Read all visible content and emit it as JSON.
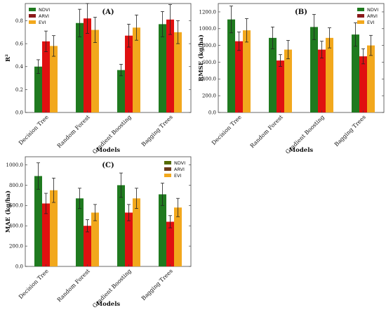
{
  "figure": {
    "colors": {
      "NDVI": "#1f7a1f",
      "ARVI": "#e01010",
      "EVI": "#f2a81d",
      "error_bar": "#222222",
      "frame": "#444444"
    },
    "legend_swatch_colors": {
      "NDVI": "#1f7a1f",
      "ARVI": "#8b1a1a",
      "EVI": "#f2a81d"
    },
    "legend_swatch_colors_C": {
      "NDVI": "#556b00",
      "ARVI": "#6b3a1a",
      "EVI": "#f2a81d"
    }
  },
  "chart_data": [
    {
      "id": "A",
      "type": "bar",
      "panel_label": "(A)",
      "categories": [
        "Decision Tree",
        "Random Forest",
        "Gradient Boosting",
        "Bagging Trees"
      ],
      "xlabel": "Models",
      "ylabel": "R²",
      "ylim": [
        0,
        0.95
      ],
      "yticks": [
        "0.0",
        "0.2",
        "0.4",
        "0.6",
        "0.8"
      ],
      "ytick_values": [
        0.0,
        0.2,
        0.4,
        0.6,
        0.8
      ],
      "legend_position": "top-left",
      "grid": false,
      "series": [
        {
          "name": "NDVI",
          "values": [
            0.4,
            0.78,
            0.37,
            0.77
          ],
          "errors": [
            0.06,
            0.12,
            0.05,
            0.11
          ]
        },
        {
          "name": "ARVI",
          "values": [
            0.62,
            0.82,
            0.67,
            0.81
          ],
          "errors": [
            0.09,
            0.13,
            0.1,
            0.13
          ]
        },
        {
          "name": "EVI",
          "values": [
            0.58,
            0.72,
            0.74,
            0.7
          ],
          "errors": [
            0.09,
            0.11,
            0.11,
            0.1
          ]
        }
      ]
    },
    {
      "id": "B",
      "type": "bar",
      "panel_label": "(B)",
      "categories": [
        "Decision Tree",
        "Random Forest",
        "Gradient Boosting",
        "Bagging Trees"
      ],
      "xlabel": "Models",
      "ylabel": "RMSE (kg/ha)",
      "ylim": [
        0,
        1300
      ],
      "yticks": [
        "0.0",
        "200.0",
        "400.0",
        "600.0",
        "800.0",
        "1000.0",
        "1200.0"
      ],
      "ytick_values": [
        0,
        200,
        400,
        600,
        800,
        1000,
        1200
      ],
      "legend_position": "top-right",
      "grid": false,
      "series": [
        {
          "name": "NDVI",
          "values": [
            1110,
            890,
            1020,
            930
          ],
          "errors": [
            160,
            130,
            150,
            140
          ]
        },
        {
          "name": "ARVI",
          "values": [
            850,
            620,
            750,
            670
          ],
          "errors": [
            110,
            70,
            100,
            90
          ]
        },
        {
          "name": "EVI",
          "values": [
            980,
            750,
            890,
            800
          ],
          "errors": [
            140,
            110,
            120,
            120
          ]
        }
      ]
    },
    {
      "id": "C",
      "type": "bar",
      "panel_label": "(C)",
      "categories": [
        "Decision Tree",
        "Random Forest",
        "Gradient Boosting",
        "Bagging Trees"
      ],
      "xlabel": "Models",
      "ylabel": "MAE (kg/ha)",
      "ylim": [
        0,
        1080
      ],
      "yticks": [
        "0.0",
        "200.0",
        "400.0",
        "600.0",
        "800.0",
        "1000.0"
      ],
      "ytick_values": [
        0,
        200,
        400,
        600,
        800,
        1000
      ],
      "legend_position": "top-right",
      "grid": false,
      "series": [
        {
          "name": "NDVI",
          "values": [
            890,
            670,
            800,
            710
          ],
          "errors": [
            130,
            100,
            120,
            110
          ]
        },
        {
          "name": "ARVI",
          "values": [
            620,
            400,
            530,
            440
          ],
          "errors": [
            100,
            60,
            80,
            60
          ]
        },
        {
          "name": "EVI",
          "values": [
            750,
            530,
            670,
            580
          ],
          "errors": [
            120,
            80,
            100,
            90
          ]
        }
      ]
    }
  ]
}
